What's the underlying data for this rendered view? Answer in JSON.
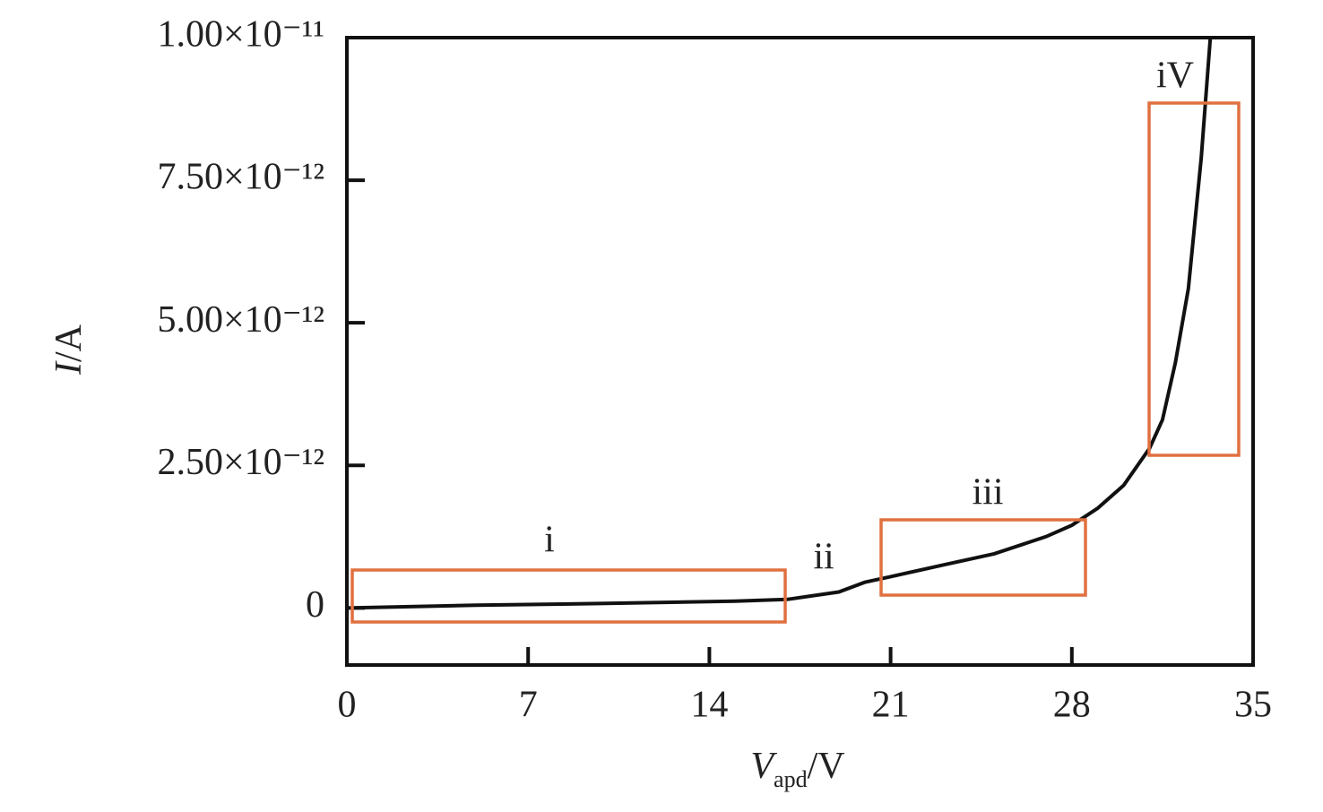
{
  "chart_data": {
    "type": "line",
    "x_label": {
      "symbol": "V",
      "subscript": "apd",
      "unit": "/V"
    },
    "y_label": {
      "symbol": "I",
      "unit": "/A"
    },
    "x": [
      0,
      5,
      10,
      15,
      17,
      19,
      20,
      21,
      23,
      25,
      27,
      28,
      29,
      30,
      31,
      31.5,
      32,
      32.5,
      33,
      33.35
    ],
    "series": [
      {
        "color": "#111111",
        "values": [
          0,
          5e-14,
          8e-14,
          1.2e-13,
          1.5e-13,
          2.8e-13,
          4.5e-13,
          5.5e-13,
          7.5e-13,
          9.5e-13,
          1.25e-12,
          1.45e-12,
          1.75e-12,
          2.15e-12,
          2.8e-12,
          3.3e-12,
          4.3e-12,
          5.6e-12,
          7.9e-12,
          1e-11
        ]
      }
    ],
    "xlim": [
      0,
      35
    ],
    "xticks": [
      0,
      7,
      14,
      21,
      28,
      35
    ],
    "ylim": [
      -1e-12,
      1e-11
    ],
    "yticks": [
      {
        "value": 0,
        "label": "0"
      },
      {
        "value": 2.5e-12,
        "label": "2.50×10⁻¹²"
      },
      {
        "value": 5e-12,
        "label": "5.00×10⁻¹²"
      },
      {
        "value": 7.5e-12,
        "label": "7.50×10⁻¹²"
      },
      {
        "value": 1e-11,
        "label": "1.00×10⁻¹¹"
      }
    ],
    "annotations": [
      "i",
      "ii",
      "iii",
      "iV"
    ],
    "annotation_color": "#e07040"
  }
}
